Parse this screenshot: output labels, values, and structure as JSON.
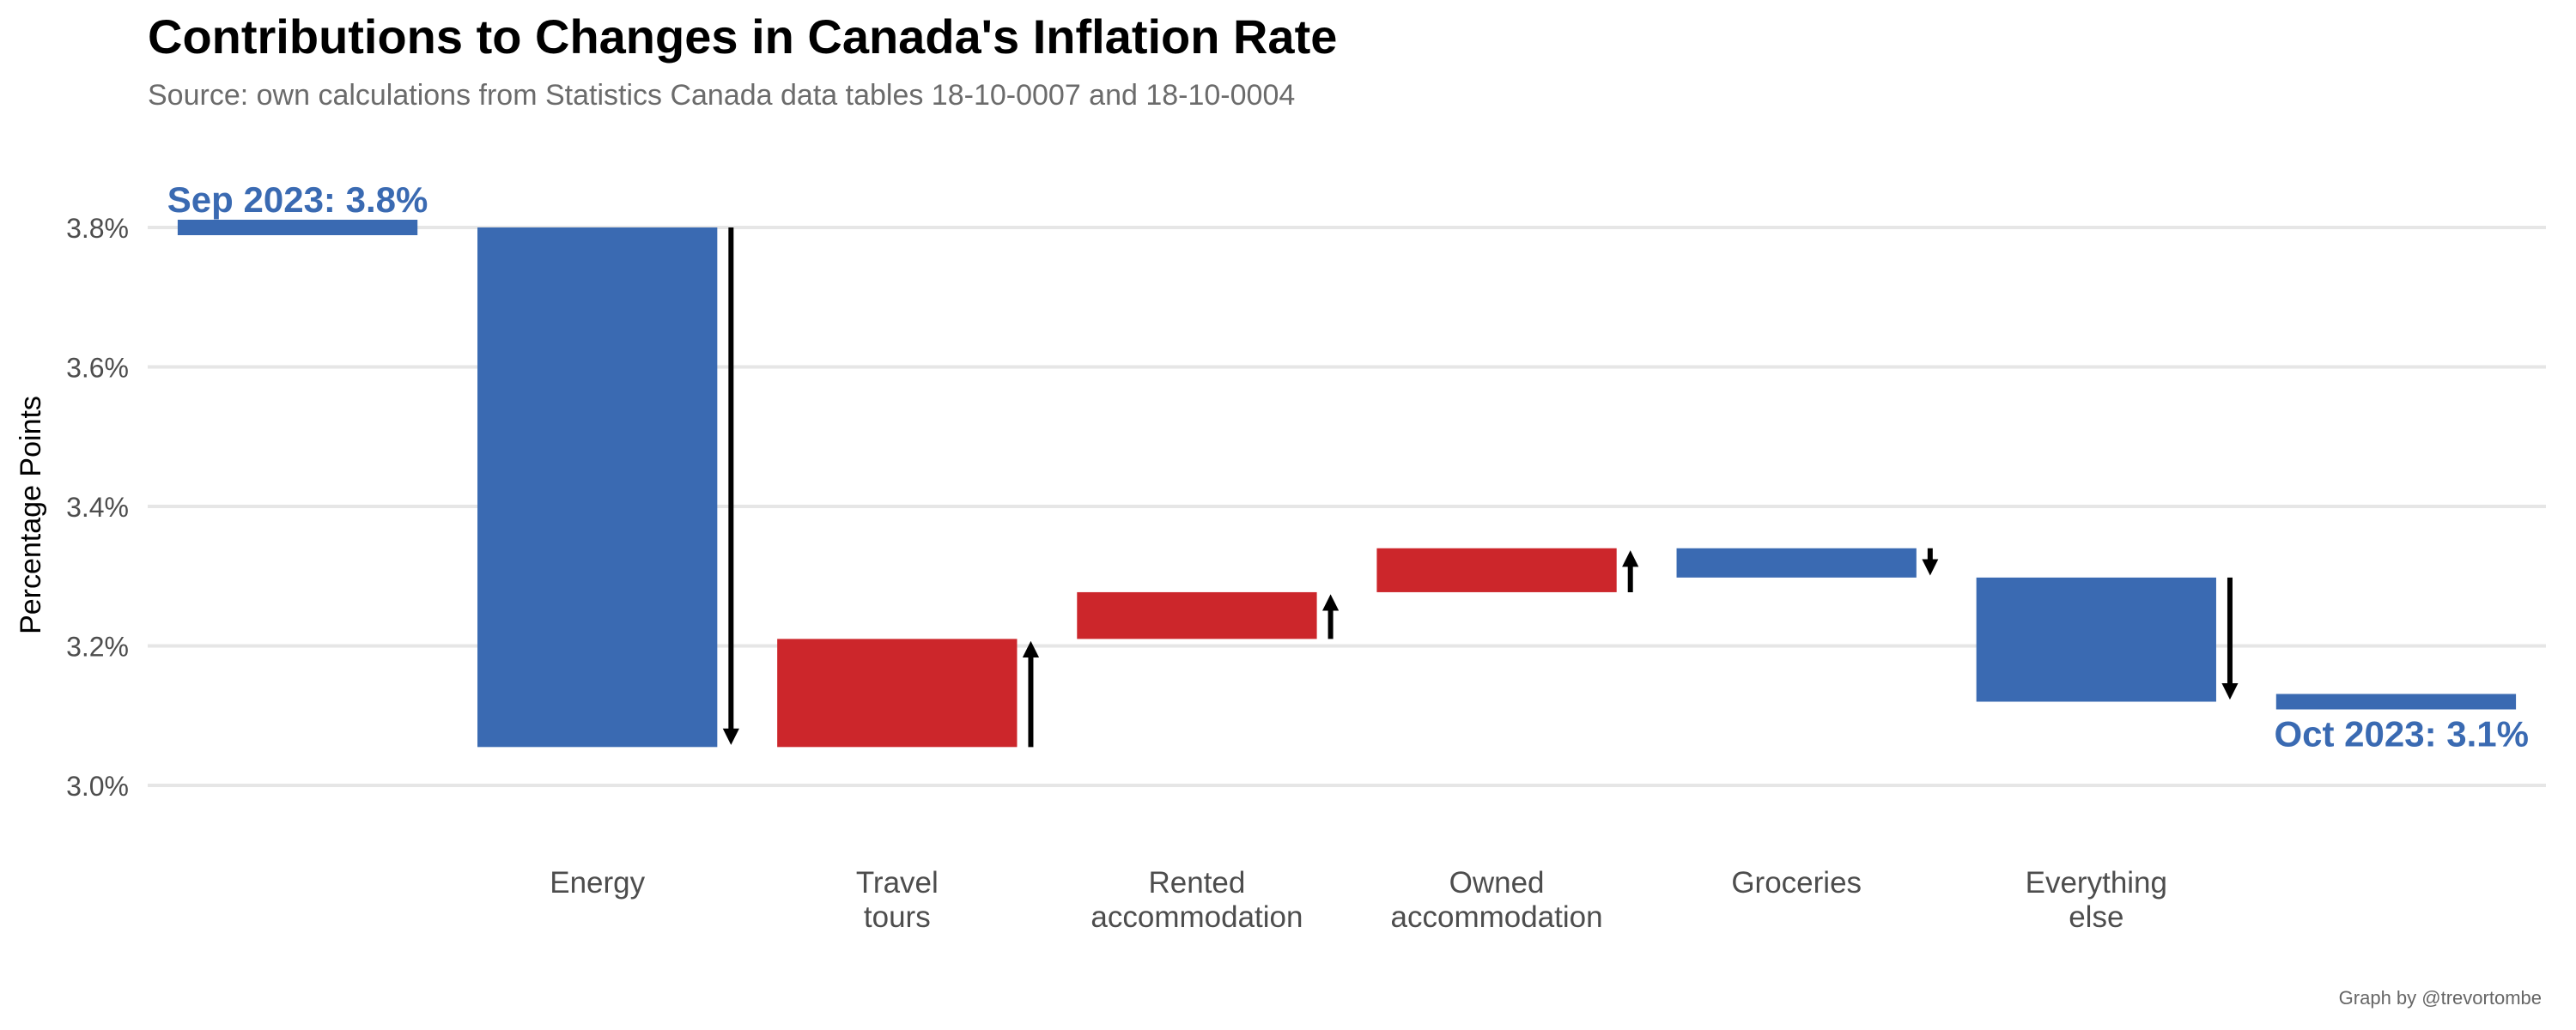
{
  "title": "Contributions to Changes in Canada's Inflation Rate",
  "subtitle": "Source: own calculations from Statistics Canada data tables 18-10-0007 and 18-10-0004",
  "caption": "Graph by @trevortombe",
  "colors": {
    "decrease": "#3a6ab2",
    "increase": "#cc262b",
    "grid": "#e6e6e6",
    "tick": "#4d4d4d"
  },
  "chart_data": {
    "type": "bar",
    "subtype": "waterfall",
    "ylabel": "Percentage Points",
    "ylim": [
      2.92,
      3.88
    ],
    "yticks": [
      3.0,
      3.2,
      3.4,
      3.6,
      3.8
    ],
    "ytick_labels": [
      "3.0%",
      "3.2%",
      "3.4%",
      "3.6%",
      "3.8%"
    ],
    "grid": true,
    "start": {
      "label": "Sep 2023: 3.8%",
      "value": 3.8
    },
    "end": {
      "label": "Oct 2023: 3.1%",
      "value": 3.12
    },
    "steps": [
      {
        "category": "Energy",
        "lines": [
          "Energy"
        ],
        "from": 3.8,
        "to": 3.055,
        "change": -0.745
      },
      {
        "category": "Travel tours",
        "lines": [
          "Travel",
          "tours"
        ],
        "from": 3.055,
        "to": 3.21,
        "change": 0.155
      },
      {
        "category": "Rented accommodation",
        "lines": [
          "Rented",
          "accommodation"
        ],
        "from": 3.21,
        "to": 3.277,
        "change": 0.067
      },
      {
        "category": "Owned accommodation",
        "lines": [
          "Owned",
          "accommodation"
        ],
        "from": 3.277,
        "to": 3.34,
        "change": 0.063
      },
      {
        "category": "Groceries",
        "lines": [
          "Groceries"
        ],
        "from": 3.34,
        "to": 3.298,
        "change": -0.042
      },
      {
        "category": "Everything else",
        "lines": [
          "Everything",
          "else"
        ],
        "from": 3.298,
        "to": 3.12,
        "change": -0.178
      }
    ]
  }
}
